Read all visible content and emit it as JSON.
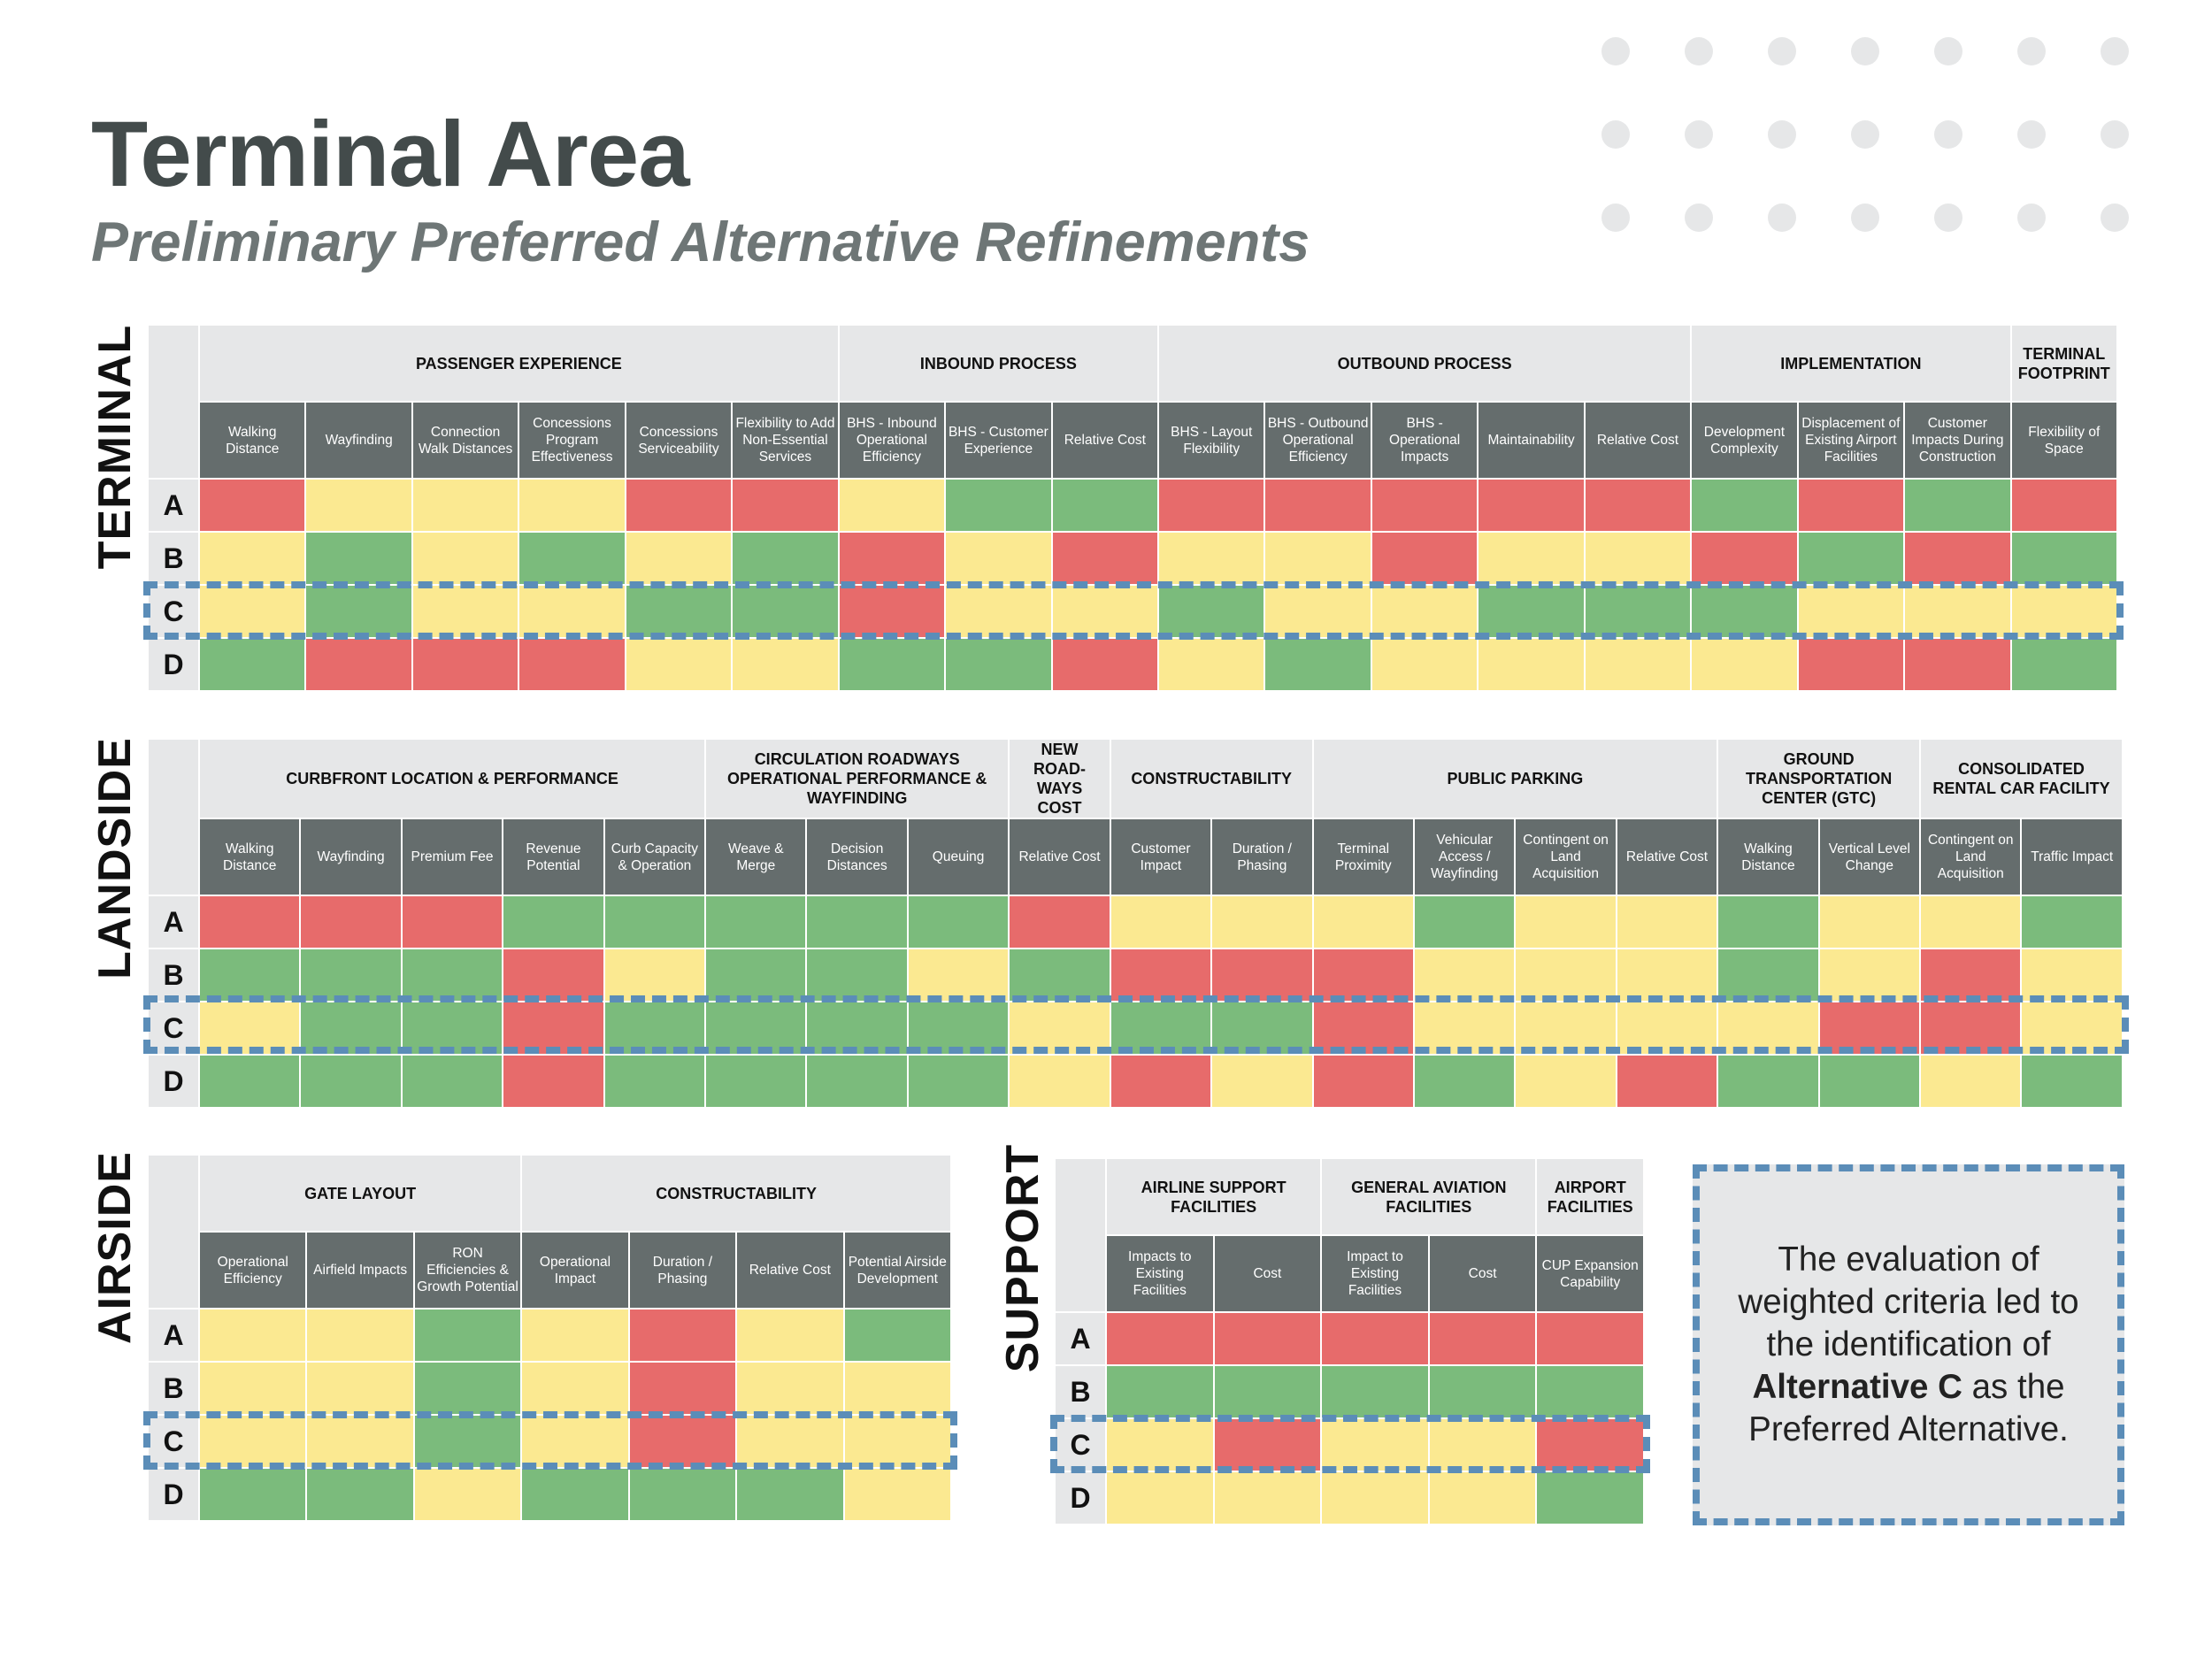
{
  "title": "Terminal Area",
  "subtitle": "Preliminary Preferred Alternative Refinements",
  "colors": {
    "R": "#e76b6b",
    "Y": "#fbe991",
    "G": "#7bbb7c",
    "highlight": "#5b8db8",
    "header_dark": "#656d6d",
    "header_light": "#e6e7e8"
  },
  "legend": {
    "R": "red",
    "Y": "yellow",
    "G": "green"
  },
  "row_labels": [
    "A",
    "B",
    "C",
    "D"
  ],
  "callout": {
    "pre": "The evaluation of weighted criteria led to the identification of ",
    "bold": "Alternative C",
    "post": " as the Preferred Alternative."
  },
  "matrices": [
    {
      "label": "TERMINAL",
      "categories": [
        {
          "label": "PASSENGER EXPERIENCE",
          "span": 6
        },
        {
          "label": "INBOUND PROCESS",
          "span": 3
        },
        {
          "label": "OUTBOUND PROCESS",
          "span": 5
        },
        {
          "label": "IMPLEMENTATION",
          "span": 3
        },
        {
          "label": "TERMINAL FOOTPRINT",
          "span": 1
        }
      ],
      "criteria": [
        "Walking Distance",
        "Wayfinding",
        "Connection Walk Distances",
        "Concessions Program Effectiveness",
        "Concessions Serviceability",
        "Flexibility to Add Non-Essential Services",
        "BHS - Inbound Operational Efficiency",
        "BHS - Customer Experience",
        "Relative Cost",
        "BHS - Layout Flexibility",
        "BHS - Outbound Operational Efficiency",
        "BHS - Operational Impacts",
        "Maintainability",
        "Relative Cost",
        "Development Complexity",
        "Displacement of Existing Airport Facilities",
        "Customer Impacts During Construction",
        "Flexibility of Space"
      ],
      "ratings": [
        [
          "R",
          "Y",
          "Y",
          "Y",
          "R",
          "R",
          "Y",
          "G",
          "G",
          "R",
          "R",
          "R",
          "R",
          "R",
          "G",
          "R",
          "G",
          "R"
        ],
        [
          "Y",
          "G",
          "Y",
          "G",
          "Y",
          "G",
          "R",
          "Y",
          "R",
          "Y",
          "Y",
          "R",
          "Y",
          "Y",
          "R",
          "G",
          "R",
          "G"
        ],
        [
          "Y",
          "G",
          "Y",
          "Y",
          "G",
          "G",
          "R",
          "Y",
          "Y",
          "G",
          "Y",
          "Y",
          "G",
          "G",
          "G",
          "Y",
          "Y",
          "Y"
        ],
        [
          "G",
          "R",
          "R",
          "R",
          "Y",
          "Y",
          "G",
          "G",
          "R",
          "Y",
          "G",
          "Y",
          "Y",
          "Y",
          "Y",
          "R",
          "R",
          "G"
        ]
      ],
      "highlight_row": "C"
    },
    {
      "label": "LANDSIDE",
      "categories": [
        {
          "label": "CURBFRONT LOCATION & PERFORMANCE",
          "span": 5
        },
        {
          "label": "CIRCULATION ROADWAYS OPERATIONAL PERFORMANCE & WAYFINDING",
          "span": 3
        },
        {
          "label": "NEW ROAD-WAYS COST",
          "span": 1
        },
        {
          "label": "CONSTRUCTABILITY",
          "span": 2
        },
        {
          "label": "PUBLIC PARKING",
          "span": 4
        },
        {
          "label": "GROUND TRANSPORTATION CENTER (GTC)",
          "span": 2
        },
        {
          "label": "CONSOLIDATED RENTAL CAR FACILITY",
          "span": 2
        }
      ],
      "criteria": [
        "Walking Distance",
        "Wayfinding",
        "Premium Fee",
        "Revenue Potential",
        "Curb Capacity & Operation",
        "Weave & Merge",
        "Decision Distances",
        "Queuing",
        "Relative Cost",
        "Customer Impact",
        "Duration / Phasing",
        "Terminal Proximity",
        "Vehicular Access / Wayfinding",
        "Contingent on Land Acquisition",
        "Relative Cost",
        "Walking Distance",
        "Vertical Level Change",
        "Contingent on Land Acquisition",
        "Traffic Impact"
      ],
      "ratings": [
        [
          "R",
          "R",
          "R",
          "G",
          "G",
          "G",
          "G",
          "G",
          "R",
          "Y",
          "Y",
          "Y",
          "G",
          "Y",
          "Y",
          "G",
          "Y",
          "Y",
          "G"
        ],
        [
          "G",
          "G",
          "G",
          "R",
          "Y",
          "G",
          "G",
          "Y",
          "G",
          "R",
          "R",
          "R",
          "Y",
          "Y",
          "Y",
          "G",
          "Y",
          "R",
          "Y"
        ],
        [
          "Y",
          "G",
          "G",
          "R",
          "G",
          "G",
          "G",
          "G",
          "Y",
          "G",
          "G",
          "R",
          "Y",
          "Y",
          "Y",
          "Y",
          "R",
          "R",
          "Y"
        ],
        [
          "G",
          "G",
          "G",
          "R",
          "G",
          "G",
          "G",
          "G",
          "Y",
          "R",
          "Y",
          "R",
          "G",
          "Y",
          "R",
          "G",
          "G",
          "Y",
          "G"
        ]
      ],
      "highlight_row": "C"
    },
    {
      "label": "AIRSIDE",
      "categories": [
        {
          "label": "GATE LAYOUT",
          "span": 3
        },
        {
          "label": "CONSTRUCTABILITY",
          "span": 4
        }
      ],
      "criteria": [
        "Operational Efficiency",
        "Airfield Impacts",
        "RON Efficiencies & Growth Potential",
        "Operational Impact",
        "Duration / Phasing",
        "Relative Cost",
        "Potential Airside Development"
      ],
      "ratings": [
        [
          "Y",
          "Y",
          "G",
          "Y",
          "R",
          "Y",
          "G"
        ],
        [
          "Y",
          "Y",
          "G",
          "Y",
          "R",
          "Y",
          "Y"
        ],
        [
          "Y",
          "Y",
          "G",
          "Y",
          "R",
          "Y",
          "Y"
        ],
        [
          "G",
          "G",
          "Y",
          "G",
          "G",
          "G",
          "Y"
        ]
      ],
      "highlight_row": "C"
    },
    {
      "label": "SUPPORT",
      "categories": [
        {
          "label": "AIRLINE SUPPORT FACILITIES",
          "span": 2
        },
        {
          "label": "GENERAL AVIATION FACILITIES",
          "span": 2
        },
        {
          "label": "AIRPORT FACILITIES",
          "span": 1
        }
      ],
      "criteria": [
        "Impacts to Existing Facilities",
        "Cost",
        "Impact to Existing Facilities",
        "Cost",
        "CUP Expansion Capability"
      ],
      "ratings": [
        [
          "R",
          "R",
          "R",
          "R",
          "R"
        ],
        [
          "G",
          "G",
          "G",
          "G",
          "G"
        ],
        [
          "Y",
          "R",
          "Y",
          "Y",
          "R"
        ],
        [
          "Y",
          "Y",
          "Y",
          "Y",
          "G"
        ]
      ],
      "highlight_row": "C"
    }
  ]
}
